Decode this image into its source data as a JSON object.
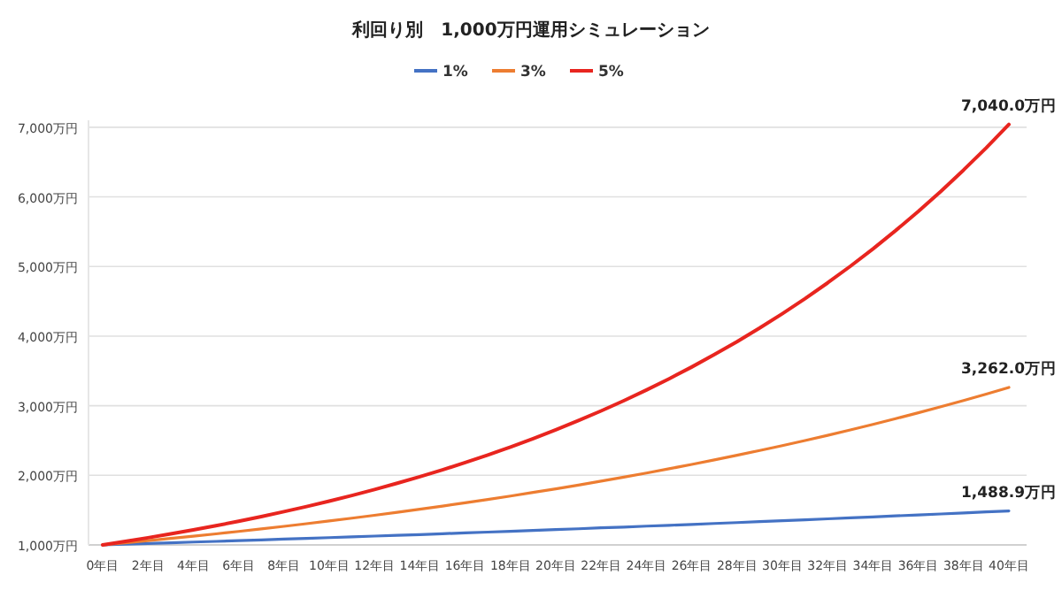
{
  "chart_data": {
    "type": "line",
    "title": "利回り別　1,000万円運用シミュレーション",
    "categories": [
      "0年目",
      null,
      "2年目",
      null,
      "4年目",
      null,
      "6年目",
      null,
      "8年目",
      null,
      "10年目",
      null,
      "12年目",
      null,
      "14年目",
      null,
      "16年目",
      null,
      "18年目",
      null,
      "20年目",
      null,
      "22年目",
      null,
      "24年目",
      null,
      "26年目",
      null,
      "28年目",
      null,
      "30年目",
      null,
      "32年目",
      null,
      "34年目",
      null,
      "36年目",
      null,
      "38年目",
      null,
      "40年目"
    ],
    "series": [
      {
        "name": "1%",
        "color": "#4472c4",
        "values": [
          1000,
          1010,
          1020,
          1030,
          1041,
          1051,
          1062,
          1072,
          1083,
          1094,
          1105,
          1116,
          1127,
          1138,
          1149,
          1161,
          1173,
          1184,
          1196,
          1208,
          1220,
          1232,
          1245,
          1257,
          1270,
          1282,
          1295,
          1308,
          1321,
          1335,
          1348,
          1361,
          1375,
          1389,
          1403,
          1417,
          1431,
          1445,
          1460,
          1474,
          1488.9
        ],
        "value_labels": [
          null,
          null,
          null,
          null,
          null,
          null,
          null,
          null,
          null,
          null,
          null,
          null,
          null,
          null,
          null,
          null,
          null,
          null,
          null,
          null,
          null,
          null,
          null,
          null,
          null,
          null,
          null,
          null,
          null,
          null,
          null,
          null,
          null,
          null,
          null,
          null,
          null,
          null,
          null,
          null,
          "1,488.9万円"
        ]
      },
      {
        "name": "3%",
        "color": "#ed7d31",
        "values": [
          1000,
          1030,
          1061,
          1093,
          1126,
          1159,
          1194,
          1230,
          1267,
          1305,
          1344,
          1384,
          1426,
          1469,
          1513,
          1558,
          1605,
          1653,
          1702,
          1754,
          1806,
          1860,
          1916,
          1974,
          2033,
          2094,
          2157,
          2221,
          2288,
          2357,
          2427,
          2500,
          2575,
          2652,
          2732,
          2814,
          2898,
          2985,
          3075,
          3167,
          3262.0
        ],
        "value_labels": [
          null,
          null,
          null,
          null,
          null,
          null,
          null,
          null,
          null,
          null,
          null,
          null,
          null,
          null,
          null,
          null,
          null,
          null,
          null,
          null,
          null,
          null,
          null,
          null,
          null,
          null,
          null,
          null,
          null,
          null,
          null,
          null,
          null,
          null,
          null,
          null,
          null,
          null,
          null,
          null,
          "3,262.0万円"
        ]
      },
      {
        "name": "5%",
        "color": "#e8251f",
        "values": [
          1000,
          1050,
          1103,
          1158,
          1216,
          1276,
          1340,
          1407,
          1478,
          1551,
          1629,
          1710,
          1796,
          1886,
          1980,
          2079,
          2183,
          2292,
          2407,
          2527,
          2653,
          2786,
          2925,
          3072,
          3225,
          3386,
          3556,
          3734,
          3920,
          4116,
          4322,
          4538,
          4765,
          5003,
          5253,
          5516,
          5792,
          6081,
          6386,
          6705,
          7040.0
        ],
        "value_labels": [
          null,
          null,
          null,
          null,
          null,
          null,
          null,
          null,
          null,
          null,
          null,
          null,
          null,
          null,
          null,
          null,
          null,
          null,
          null,
          null,
          null,
          null,
          null,
          null,
          null,
          null,
          null,
          null,
          null,
          null,
          null,
          null,
          null,
          null,
          null,
          null,
          null,
          null,
          null,
          null,
          "7,040.0万円"
        ]
      }
    ],
    "ylim": [
      1000,
      7100
    ],
    "yticks": [
      {
        "value": 1000,
        "label": "1,000万円"
      },
      {
        "value": 2000,
        "label": "2,000万円"
      },
      {
        "value": 3000,
        "label": "3,000万円"
      },
      {
        "value": 4000,
        "label": "4,000万円"
      },
      {
        "value": 5000,
        "label": "5,000万円"
      },
      {
        "value": 6000,
        "label": "6,000万円"
      },
      {
        "value": 7000,
        "label": "7,000万円"
      }
    ],
    "grid": "y",
    "legend": "top",
    "marker": "none",
    "line_style": "solid"
  }
}
